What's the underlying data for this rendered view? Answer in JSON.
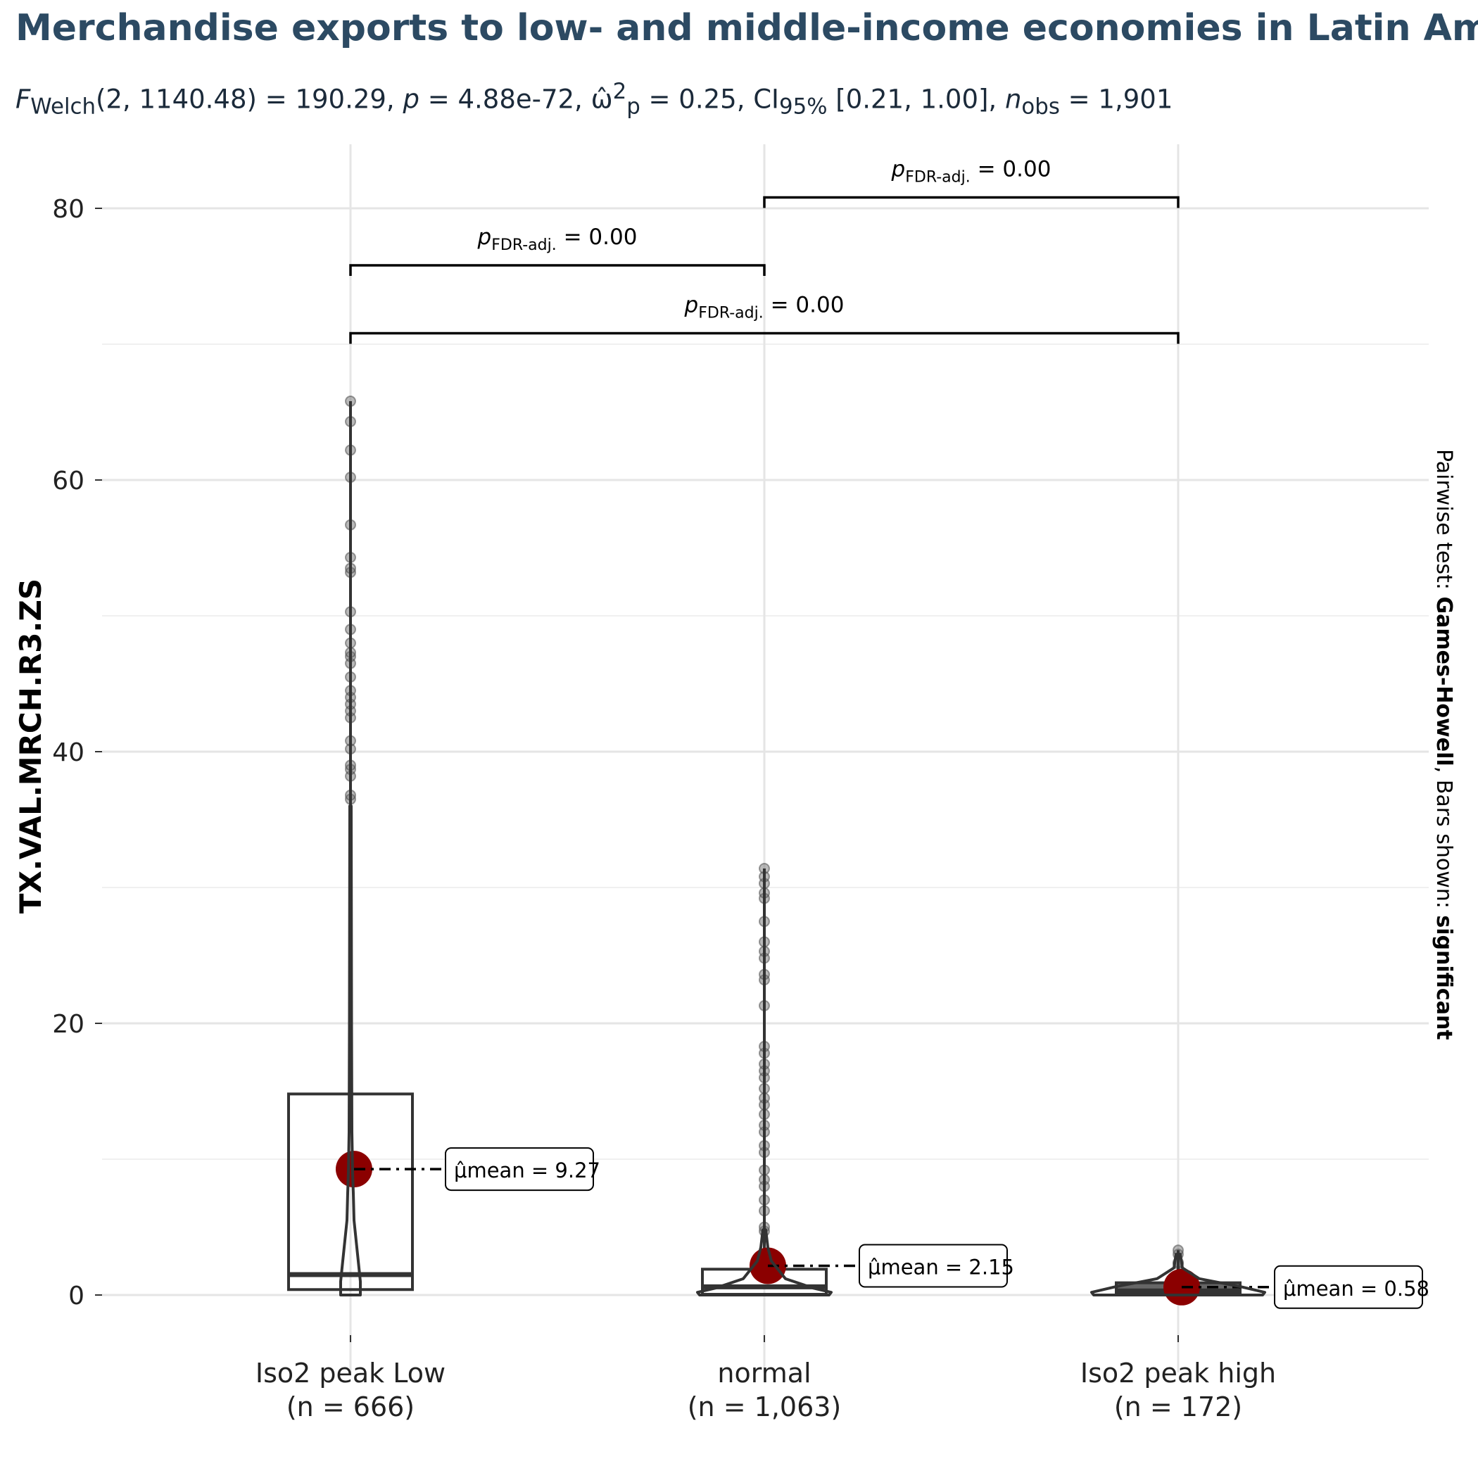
{
  "title": "Merchandise exports to low- and middle-income economies in Latin Am",
  "subtitle": "F Welch (2, 1140.48) = 190.29, p = 4.88e-72, ω̂²p = 0.25, CI 95% [0.21, 1.00], n obs = 1,901",
  "subtitle_parts": {
    "f": "F",
    "f_sub": "Welch",
    "f_args": "(2, 1140.48) = 190.29, ",
    "p": "p",
    "p_val": " = 4.88e-72, ",
    "omega": "ω̂",
    "omega_sup": "2",
    "omega_sub": "p",
    "omega_val": " = 0.25, CI",
    "ci_sub": "95%",
    "ci_val": " [0.21, 1.00], ",
    "n": "n",
    "n_sub": "obs",
    "n_val": " = 1,901"
  },
  "colors": {
    "title": "#2c4a63",
    "mean_point": "#8b0000",
    "box_stroke": "#333333",
    "grid": "#e5e5e5"
  },
  "chart_data": {
    "type": "box-violin",
    "ylabel": "TX.VAL.MRCH.R3.ZS",
    "xlabel": "",
    "ylim": [
      -3.5,
      84
    ],
    "yticks": [
      0,
      20,
      40,
      60,
      80
    ],
    "grid": true,
    "right_caption": {
      "prefix": "Pairwise test: ",
      "test": "Games-Howell",
      "middle": ", Bars shown: ",
      "shown": "significant"
    },
    "groups": [
      {
        "label": "Iso2 peak  Low",
        "n_label": "(n = 666)",
        "box": {
          "q1": 0.4,
          "median": 1.5,
          "q3": 14.8,
          "whisker_low": 0,
          "whisker_high": 36
        },
        "mean": 9.27,
        "mean_label": "μ̂mean = 9.27",
        "outliers": [
          36.5,
          36.8,
          38.2,
          38.7,
          39.0,
          40.2,
          40.8,
          42.5,
          43.0,
          43.5,
          44.0,
          44.5,
          45.5,
          46.5,
          47.0,
          47.3,
          48.0,
          49.0,
          50.3,
          53.2,
          53.5,
          54.3,
          56.7,
          60.2,
          62.2,
          64.3,
          65.8
        ]
      },
      {
        "label": "normal",
        "n_label": "(n = 1,063)",
        "box": {
          "q1": 0.05,
          "median": 0.6,
          "q3": 1.9,
          "whisker_low": 0,
          "whisker_high": 4.5
        },
        "mean": 2.15,
        "mean_label": "μ̂mean = 2.15",
        "outliers": [
          4.7,
          5.0,
          6.2,
          7.0,
          8.0,
          8.5,
          9.2,
          10.5,
          11.0,
          12.0,
          12.5,
          13.3,
          14.0,
          14.5,
          15.2,
          16.0,
          16.5,
          17.0,
          17.8,
          18.3,
          21.3,
          23.2,
          23.6,
          24.8,
          25.3,
          26.0,
          27.5,
          29.2,
          29.6,
          30.3,
          30.8,
          31.4
        ]
      },
      {
        "label": "Iso2 peak  high",
        "n_label": "(n = 172)",
        "box": {
          "q1": 0.05,
          "median": 0.3,
          "q3": 0.9,
          "whisker_low": 0,
          "whisker_high": 2.0
        },
        "mean": 0.58,
        "mean_label": "μ̂mean = 0.58",
        "outliers": [
          2.3,
          2.4,
          3.0,
          3.3
        ]
      }
    ],
    "comparisons": [
      {
        "from": 1,
        "to": 2,
        "y": 80.8,
        "label": "p FDR-adj. = 0.00"
      },
      {
        "from": 0,
        "to": 1,
        "y": 75.8,
        "label": "p FDR-adj. = 0.00"
      },
      {
        "from": 0,
        "to": 2,
        "y": 70.8,
        "label": "p FDR-adj. = 0.00"
      }
    ],
    "comparison_label_parts": {
      "p": "p",
      "sub": "FDR-adj.",
      "val": " = 0.00"
    }
  }
}
